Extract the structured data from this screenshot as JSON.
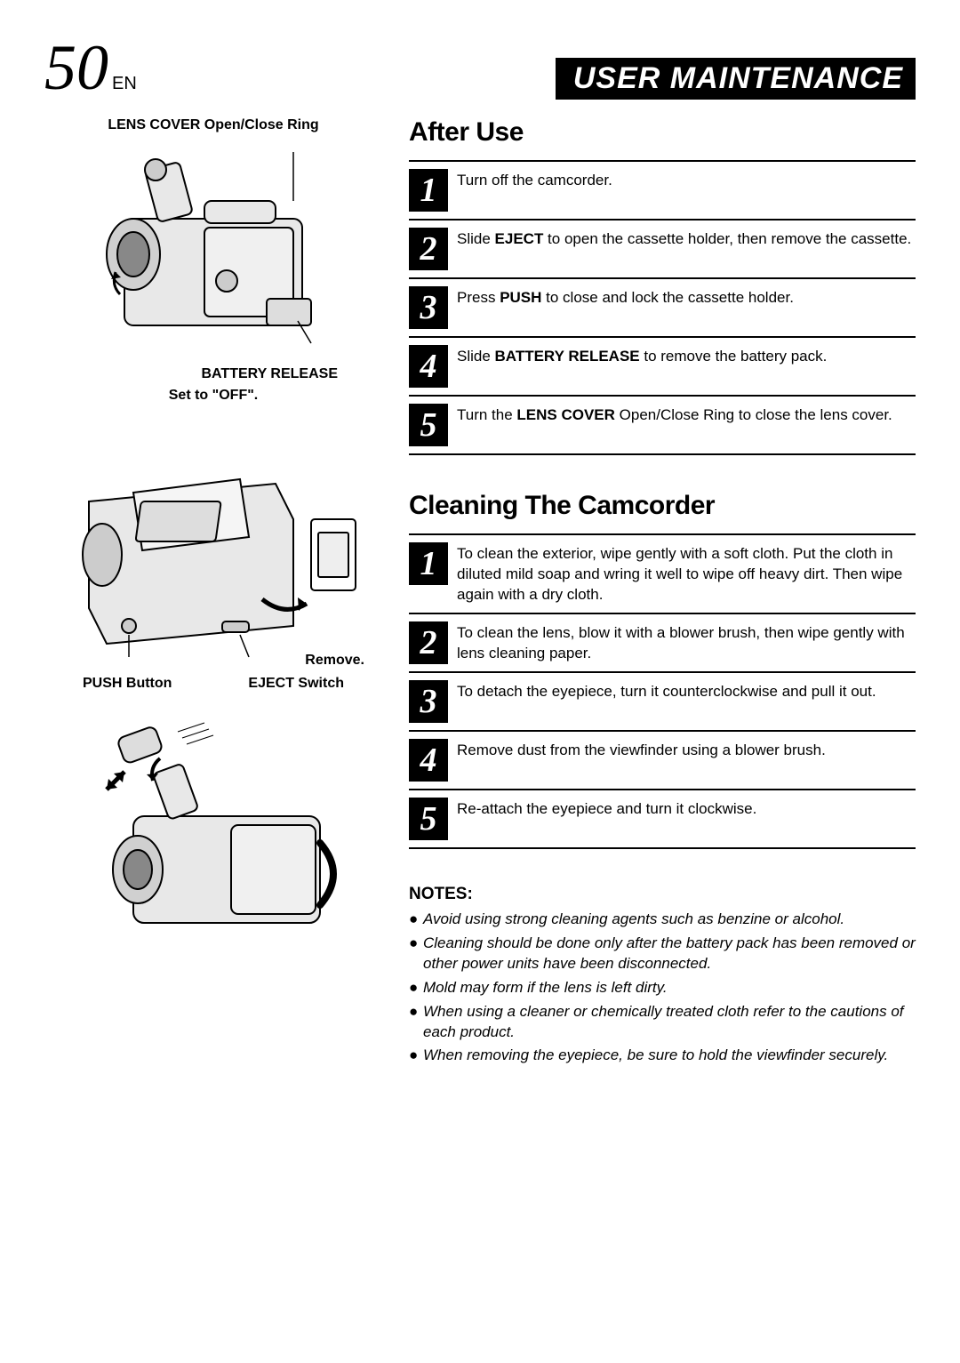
{
  "page_number": "50",
  "page_lang": "EN",
  "header_title": "USER MAINTENANCE",
  "diagram1": {
    "top_label": "LENS COVER Open/Close Ring",
    "battery_label": "BATTERY RELEASE",
    "bottom_label": "Set to \"OFF\"."
  },
  "diagram2": {
    "remove_label": "Remove.",
    "push_label": "PUSH Button",
    "eject_label": "EJECT Switch"
  },
  "section1": {
    "title": "After Use",
    "steps": [
      {
        "n": "1",
        "html": "Turn off the camcorder."
      },
      {
        "n": "2",
        "html": "Slide <b>EJECT</b> to open the cassette holder, then remove the cassette."
      },
      {
        "n": "3",
        "html": "Press <b>PUSH</b> to close and lock the cassette holder."
      },
      {
        "n": "4",
        "html": "Slide <b>BATTERY RELEASE</b> to remove the battery pack."
      },
      {
        "n": "5",
        "html": "Turn the <b>LENS COVER</b> Open/Close Ring to close the lens cover."
      }
    ]
  },
  "section2": {
    "title": "Cleaning The Camcorder",
    "steps": [
      {
        "n": "1",
        "html": "To clean the exterior, wipe gently with a soft cloth. Put the cloth in diluted mild soap and wring it well to wipe off heavy dirt. Then wipe again with a dry cloth."
      },
      {
        "n": "2",
        "html": "To clean the lens, blow it with a blower brush, then wipe gently with lens cleaning paper."
      },
      {
        "n": "3",
        "html": "To detach the eyepiece, turn it counterclockwise and pull it out."
      },
      {
        "n": "4",
        "html": "Remove dust from the viewfinder using a blower brush."
      },
      {
        "n": "5",
        "html": "Re-attach the eyepiece and turn it clockwise."
      }
    ]
  },
  "notes": {
    "title": "NOTES:",
    "items": [
      "Avoid using strong cleaning agents such as benzine or alcohol.",
      "Cleaning should be done only after the battery pack has been removed or other power units have been disconnected.",
      "Mold may form if the lens is left dirty.",
      "When using a cleaner or chemically treated cloth refer to the cautions of each product.",
      "When removing the eyepiece, be sure to hold the viewfinder securely."
    ]
  }
}
